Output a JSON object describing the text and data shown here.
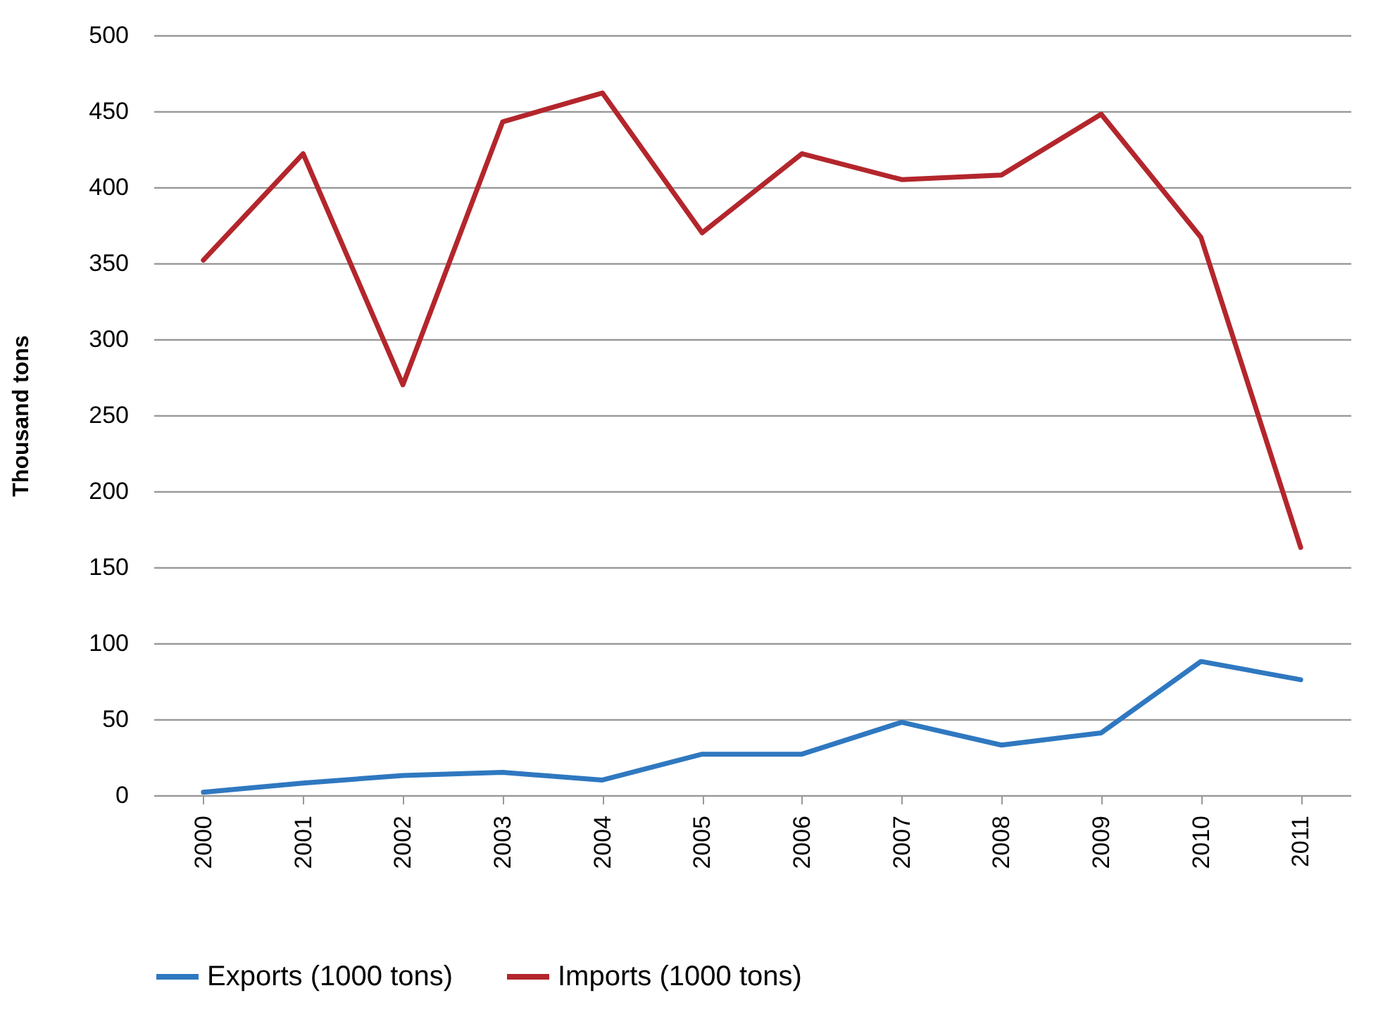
{
  "chart_data": {
    "type": "line",
    "ylabel": "Thousand tons",
    "categories": [
      "2000",
      "2001",
      "2002",
      "2003",
      "2004",
      "2005",
      "2006",
      "2007",
      "2008",
      "2009",
      "2010",
      "2011"
    ],
    "series": [
      {
        "name": "Exports (1000 tons)",
        "color": "#2f78c0",
        "values": [
          2,
          8,
          13,
          15,
          10,
          27,
          27,
          48,
          33,
          41,
          88,
          76
        ]
      },
      {
        "name": "Imports (1000 tons)",
        "color": "#b3262c",
        "values": [
          352,
          422,
          270,
          443,
          462,
          370,
          422,
          405,
          408,
          448,
          367,
          163
        ]
      }
    ],
    "ylim": [
      0,
      500
    ],
    "yticks": [
      0,
      50,
      100,
      150,
      200,
      250,
      300,
      350,
      400,
      450,
      500
    ],
    "grid": "y",
    "legend": "bottom",
    "marker": "none",
    "line_style": "solid"
  }
}
